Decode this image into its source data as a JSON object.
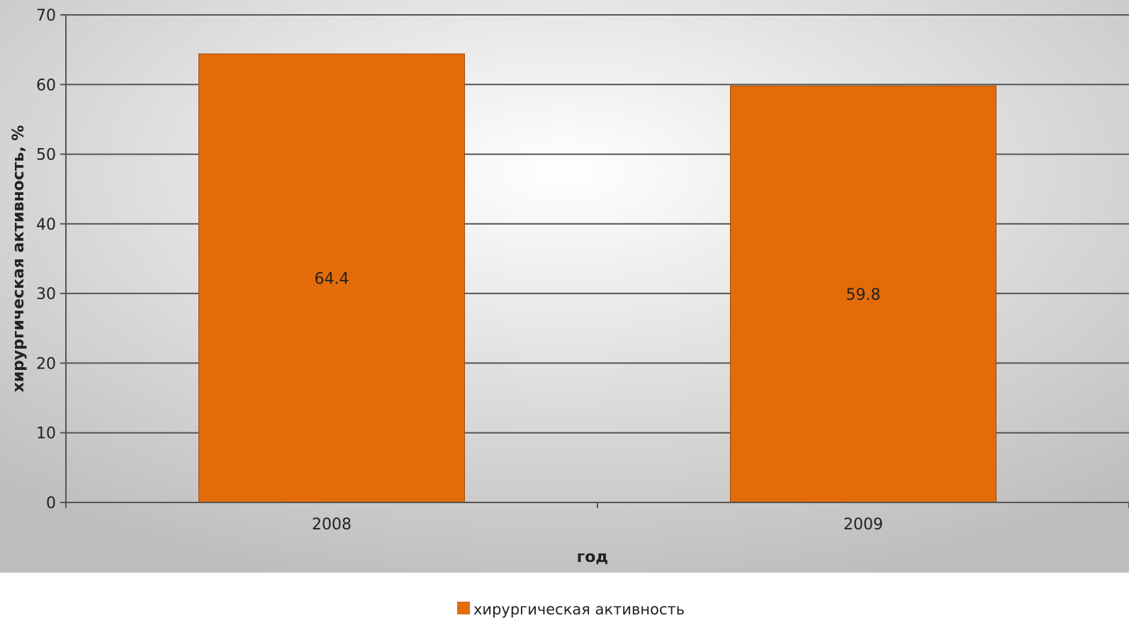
{
  "chart_data": {
    "type": "bar",
    "categories": [
      "2008",
      "2009"
    ],
    "series": [
      {
        "name": "хирургическая активность",
        "values": [
          64.4,
          59.8
        ],
        "color": "#e36c09"
      }
    ],
    "data_labels": [
      "64.4",
      "59.8"
    ],
    "xlabel": "год",
    "ylabel": "хирургическая активность, %",
    "ylim": [
      0,
      70
    ],
    "yticks": [
      0,
      10,
      20,
      30,
      40,
      50,
      60,
      70
    ],
    "grid": true,
    "legend_position": "bottom-center",
    "colors": {
      "plot_background": "#e6e6e6",
      "gridline": "#555555",
      "bar": "#e36c09"
    }
  }
}
